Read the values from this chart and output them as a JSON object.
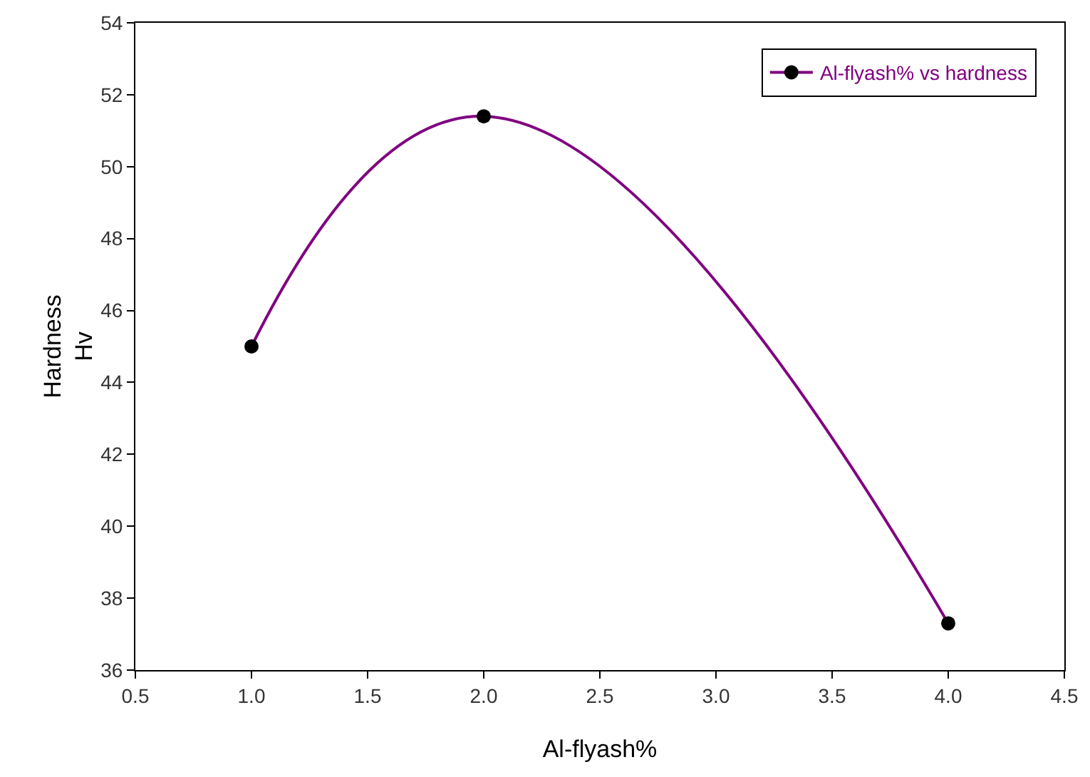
{
  "chart_data": {
    "type": "line",
    "xlabel": "Al-flyash%",
    "ylabel": "Hardness\nHv",
    "x": [
      1,
      2,
      4
    ],
    "series": [
      {
        "name": "Al-flyash% vs hardness",
        "color": "#800080",
        "colors": [
          "#000000",
          "#000000",
          "#000000"
        ],
        "values": [
          45,
          51.4,
          37.3
        ]
      }
    ],
    "xlim": [
      0.5,
      4.5
    ],
    "xticks": [
      {
        "value": 0.5,
        "label": "0.5"
      },
      {
        "value": 1,
        "label": "1.0"
      },
      {
        "value": 1.5,
        "label": "1.5"
      },
      {
        "value": 2,
        "label": "2.0"
      },
      {
        "value": 2.5,
        "label": "2.5"
      },
      {
        "value": 3,
        "label": "3.0"
      },
      {
        "value": 3.5,
        "label": "3.5"
      },
      {
        "value": 4,
        "label": "4.0"
      },
      {
        "value": 4.5,
        "label": "4.5"
      }
    ],
    "ylim": [
      36,
      54
    ],
    "yticks": [
      36,
      38,
      40,
      42,
      44,
      46,
      48,
      50,
      52,
      54
    ],
    "grid": false,
    "legend": "top right",
    "marker": "circle",
    "line_style": "solid"
  }
}
